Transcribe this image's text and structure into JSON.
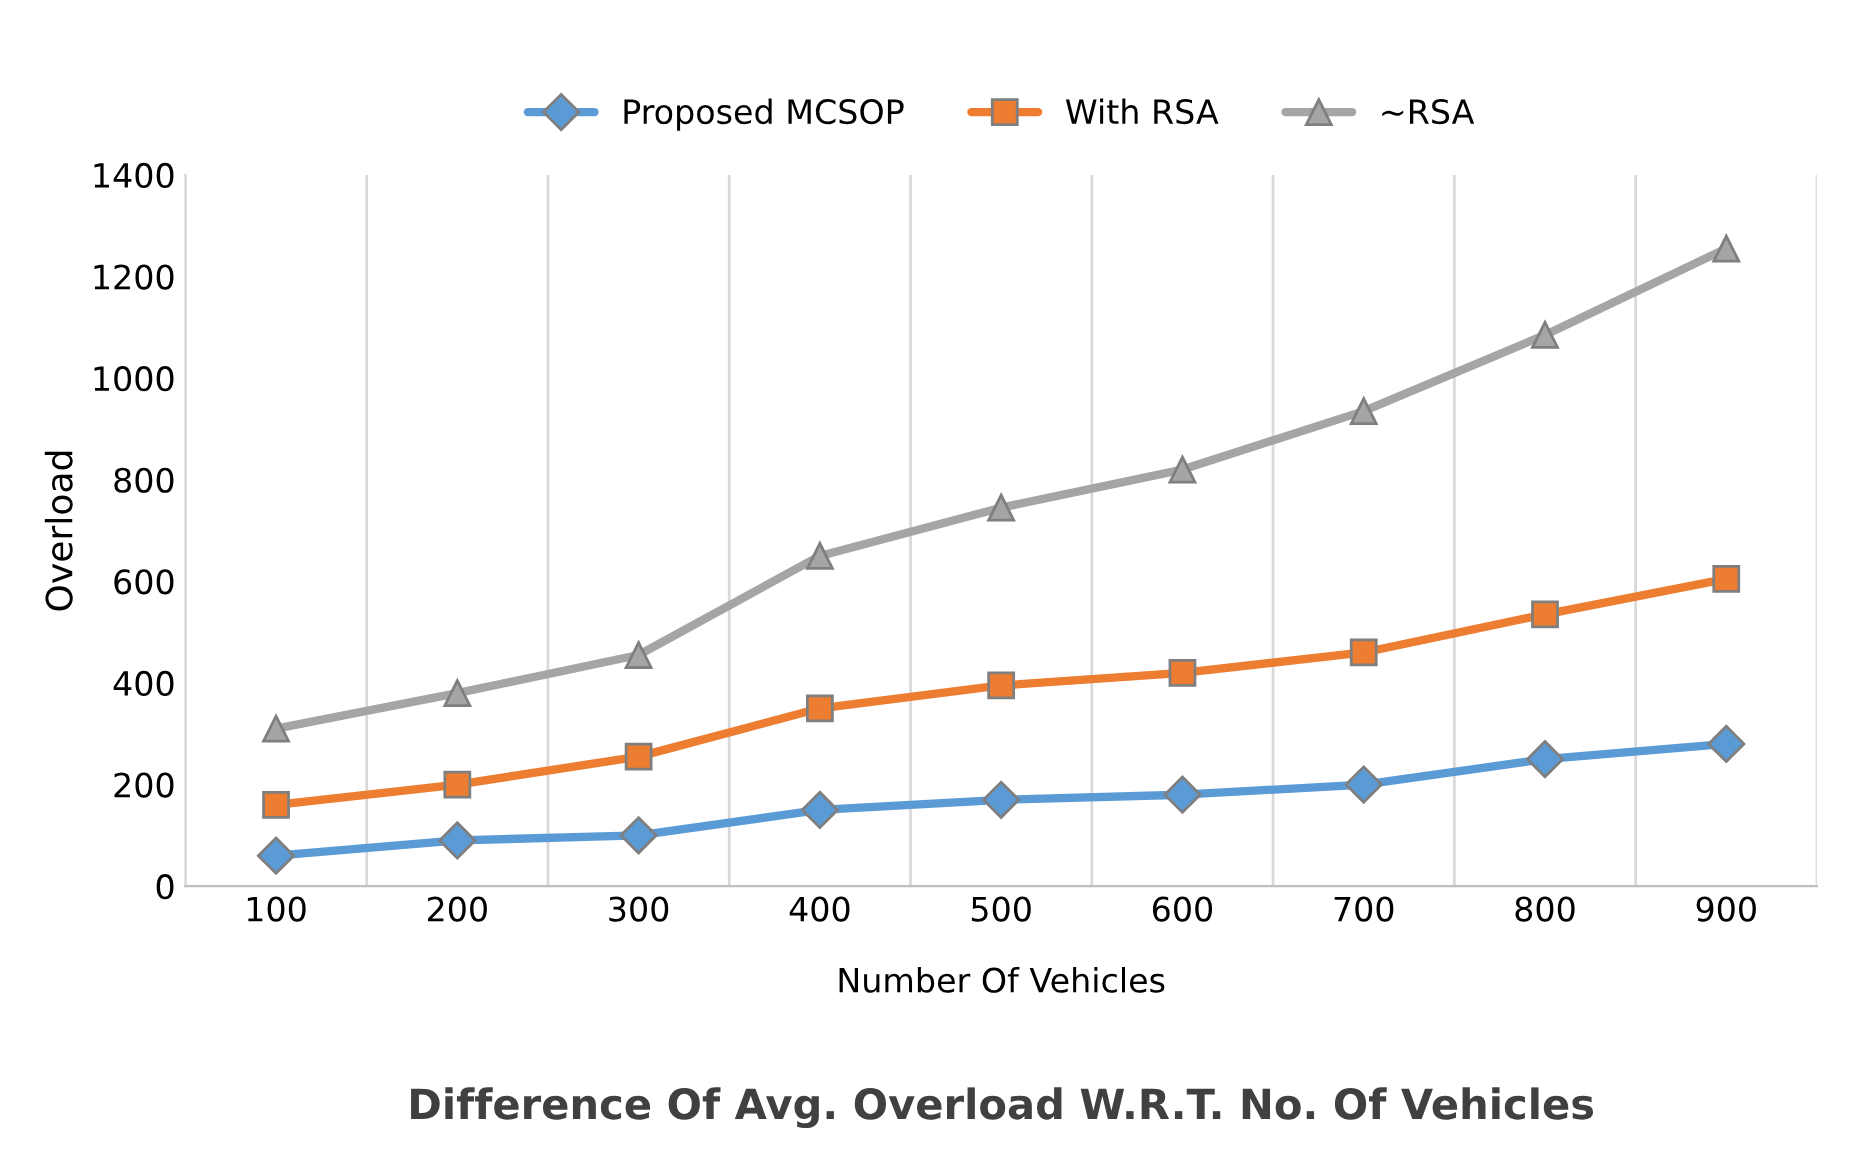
{
  "chart_data": {
    "type": "line",
    "title": "Difference Of Avg. Overload W.R.T. No. Of Vehicles",
    "xlabel": "Number Of Vehicles",
    "ylabel": "Overload",
    "categories": [
      "100",
      "200",
      "300",
      "400",
      "500",
      "600",
      "700",
      "800",
      "900"
    ],
    "series": [
      {
        "name": "Proposed MCSOP",
        "color": "#5b9bd5",
        "marker": "diamond",
        "values": [
          60,
          90,
          100,
          150,
          170,
          180,
          200,
          250,
          280
        ]
      },
      {
        "name": "With RSA",
        "color": "#ed7d31",
        "marker": "square",
        "values": [
          160,
          200,
          255,
          350,
          395,
          420,
          460,
          535,
          605
        ]
      },
      {
        "name": "~RSA",
        "color": "#a5a5a5",
        "marker": "triangle",
        "values": [
          310,
          380,
          455,
          650,
          745,
          820,
          935,
          1085,
          1255
        ]
      }
    ],
    "ylim": [
      0,
      1400
    ],
    "yticks": [
      0,
      200,
      400,
      600,
      800,
      1000,
      1200,
      1400
    ],
    "grid": "x",
    "legend": "top"
  }
}
